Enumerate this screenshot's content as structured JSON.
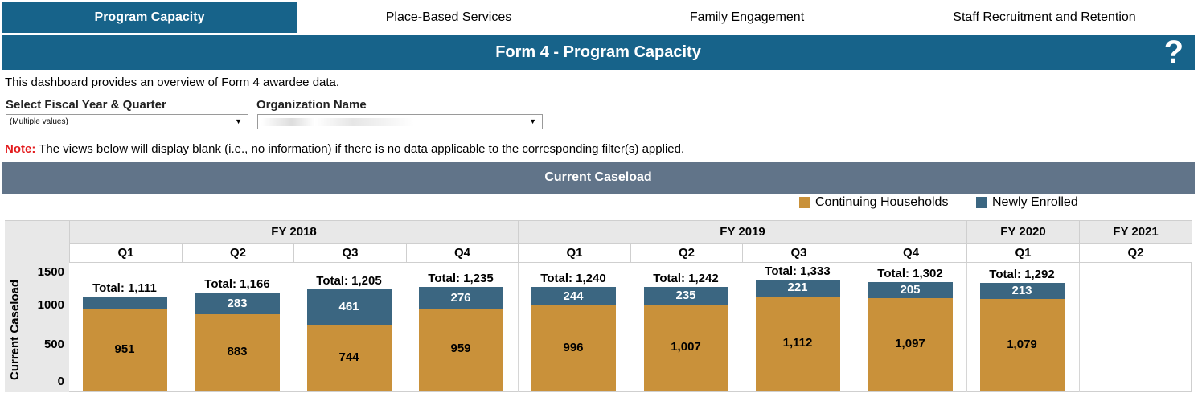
{
  "tabs": [
    {
      "label": "Program Capacity",
      "active": true
    },
    {
      "label": "Place-Based Services",
      "active": false
    },
    {
      "label": "Family Engagement",
      "active": false
    },
    {
      "label": "Staff Recruitment and Retention",
      "active": false
    }
  ],
  "header": {
    "title": "Form 4 - Program Capacity",
    "help_icon": "?"
  },
  "intro": "This dashboard provides an overview of Form 4 awardee data.",
  "filters": {
    "fiscal": {
      "label": "Select Fiscal Year & Quarter",
      "value": "(Multiple values)"
    },
    "org": {
      "label": "Organization Name",
      "value": ""
    }
  },
  "note": {
    "label": "Note:",
    "text": " The views below will display blank (i.e., no information) if there is no data applicable to the corresponding filter(s) applied."
  },
  "section_title": "Current Caseload",
  "colors": {
    "continuing": "#c9913a",
    "newly": "#3b6681",
    "brand": "#17638a"
  },
  "chart_data": {
    "type": "bar",
    "stacked": true,
    "ylabel": "Current Caseload",
    "ylim": [
      0,
      1500
    ],
    "yticks": [
      "0",
      "500",
      "1000",
      "1500"
    ],
    "legend": [
      "Continuing Households",
      "Newly Enrolled"
    ],
    "legend_position": "top-right",
    "fiscal_years": [
      {
        "label": "FY 2018",
        "quarters": [
          "Q1",
          "Q2",
          "Q3",
          "Q4"
        ]
      },
      {
        "label": "FY 2019",
        "quarters": [
          "Q1",
          "Q2",
          "Q3",
          "Q4"
        ]
      },
      {
        "label": "FY 2020",
        "quarters": [
          "Q1"
        ]
      },
      {
        "label": "FY 2021",
        "quarters": [
          "Q2"
        ]
      }
    ],
    "categories": [
      "FY 2018 Q1",
      "FY 2018 Q2",
      "FY 2018 Q3",
      "FY 2018 Q4",
      "FY 2019 Q1",
      "FY 2019 Q2",
      "FY 2019 Q3",
      "FY 2019 Q4",
      "FY 2020 Q1",
      "FY 2021 Q2"
    ],
    "series": [
      {
        "name": "Continuing Households",
        "values": [
          951,
          883,
          744,
          959,
          996,
          1007,
          1112,
          1097,
          1079,
          null
        ],
        "labels": [
          "951",
          "883",
          "744",
          "959",
          "996",
          "1,007",
          "1,112",
          "1,097",
          "1,079",
          ""
        ]
      },
      {
        "name": "Newly Enrolled",
        "values": [
          160,
          283,
          461,
          276,
          244,
          235,
          221,
          205,
          213,
          null
        ],
        "labels": [
          "",
          "283",
          "461",
          "276",
          "244",
          "235",
          "221",
          "205",
          "213",
          ""
        ]
      }
    ],
    "totals": [
      "Total: 1,111",
      "Total: 1,166",
      "Total: 1,205",
      "Total: 1,235",
      "Total: 1,240",
      "Total: 1,242",
      "Total: 1,333",
      "Total: 1,302",
      "Total: 1,292",
      ""
    ]
  }
}
